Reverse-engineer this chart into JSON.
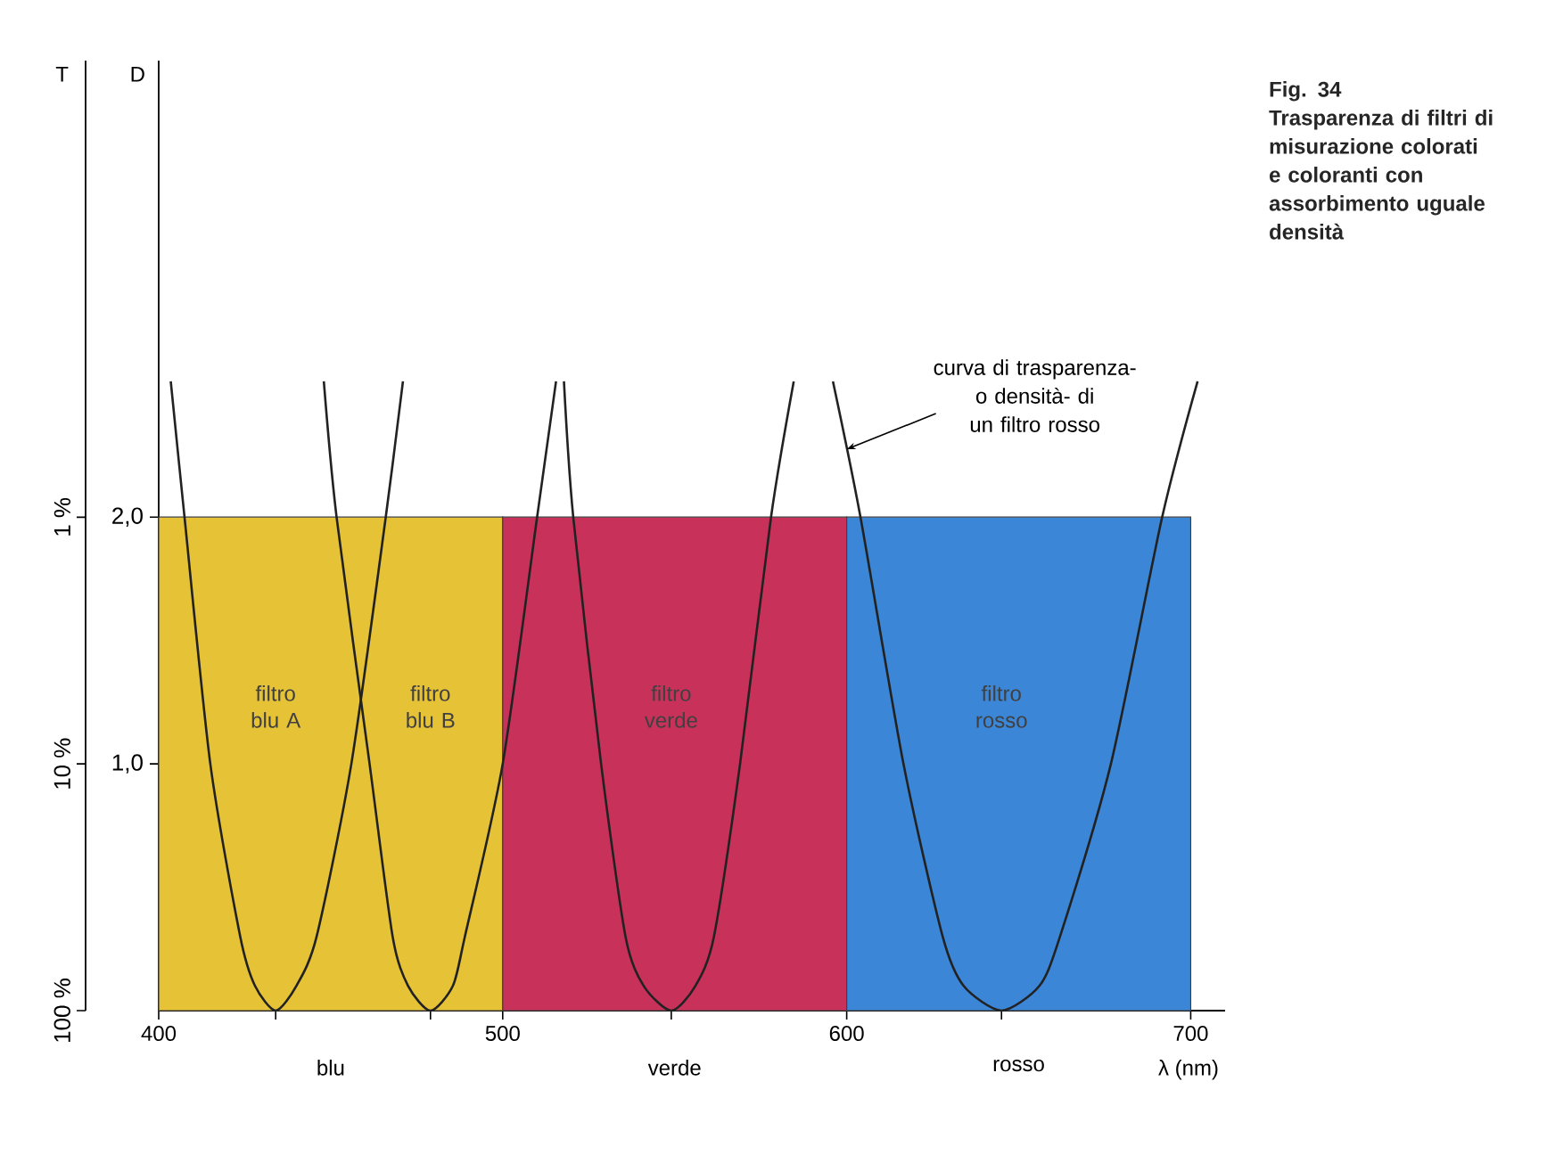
{
  "chart_data": {
    "type": "line",
    "title": "Fig. 34",
    "subtitle": "Trasparenza di filtri di misurazione colorati e coloranti con assorbimento uguale densità",
    "xlabel": "λ (nm)",
    "ylabel": "D",
    "y2label": "T",
    "xlim": [
      400,
      710
    ],
    "ylim": [
      0,
      3.85
    ],
    "y2lim": [
      100,
      0.0141
    ],
    "xticks": [
      400,
      500,
      600,
      700,
      {
        "value": 434,
        "label": null
      },
      {
        "value": 479,
        "label": null
      },
      {
        "value": 549,
        "label": null
      },
      {
        "value": 645,
        "label": null
      }
    ],
    "log": "y2",
    "yticks": [
      {
        "value": 1,
        "label": "1,0"
      },
      {
        "value": 2,
        "label": "2,0"
      }
    ],
    "y2ticks": [
      {
        "value": 100,
        "label": "100 %"
      },
      {
        "value": 10,
        "label": "10 %"
      },
      {
        "value": 1,
        "label": "1 %"
      }
    ],
    "series": [
      {
        "type": "area",
        "color": "#e6c237",
        "x": [
          400,
          500
        ],
        "values": [
          2,
          2
        ]
      },
      {
        "type": "area",
        "color": "#c8325a",
        "x": [
          500,
          600
        ],
        "values": [
          2,
          2
        ]
      },
      {
        "type": "area",
        "color": "#3b86d6",
        "x": [
          600,
          700
        ],
        "values": [
          2,
          2
        ]
      },
      {
        "color": "#222222",
        "x": [
          403.5,
          407.5,
          415,
          423.7,
          428,
          434,
          440,
          445.9,
          456,
          466,
          471
        ],
        "values": [
          2.55,
          2,
          1,
          0.3,
          0.1,
          0,
          0.1,
          0.3,
          1,
          2,
          2.55
        ]
      },
      {
        "color": "#222222",
        "x": [
          448,
          451.7,
          461.3,
          468,
          472.5,
          479,
          485.5,
          489,
          500,
          510,
          515.5
        ],
        "values": [
          2.55,
          2,
          1,
          0.3,
          0.1,
          0,
          0.1,
          0.3,
          1,
          2,
          2.55
        ]
      },
      {
        "color": "#222222",
        "x": [
          517.8,
          520.5,
          528.6,
          535.7,
          541,
          549,
          556,
          561.4,
          569,
          578,
          584.6
        ],
        "values": [
          2.55,
          2,
          1,
          0.3,
          0.1,
          0,
          0.1,
          0.3,
          1,
          2,
          2.55
        ]
      },
      {
        "color": "#222222",
        "x": [
          596,
          604,
          616.5,
          627.9,
          634,
          645,
          656,
          662,
          676.8,
          691.7,
          702
        ],
        "values": [
          2.55,
          2,
          1,
          0.3,
          0.1,
          0,
          0.1,
          0.3,
          1,
          2,
          2.55
        ]
      }
    ],
    "annotations": [
      "filtro blu A",
      "filtro blu B",
      "filtro verde",
      "filtro rosso",
      "curva di trasparenza- o densità- di un filtro rosso",
      "blu",
      "verde",
      "rosso"
    ]
  }
}
